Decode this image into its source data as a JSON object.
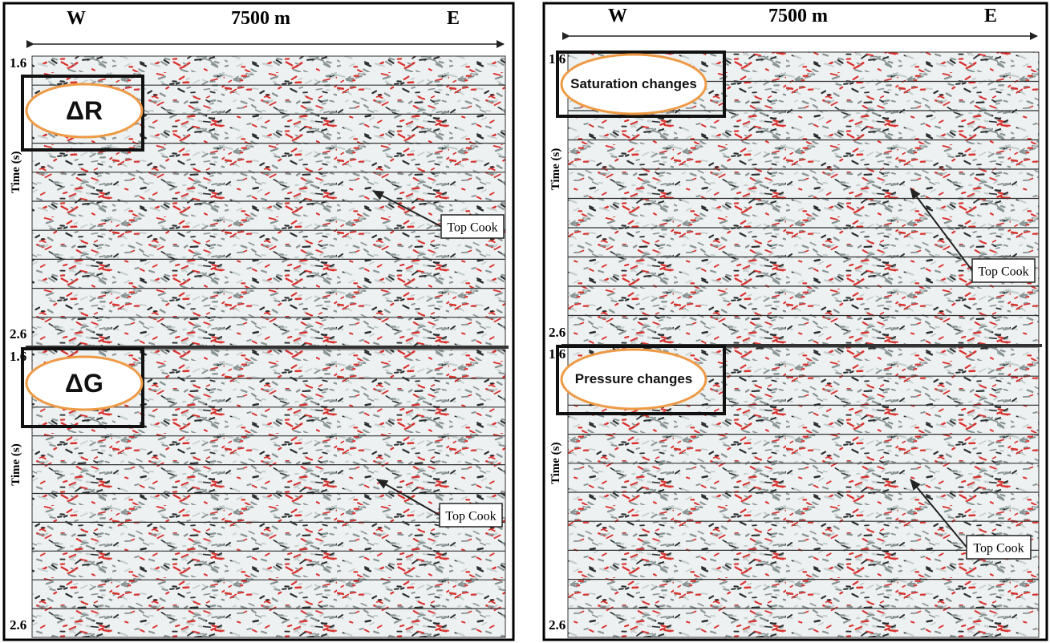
{
  "panels": [
    {
      "header": {
        "west": "W",
        "distance": "7500 m",
        "east": "E"
      },
      "sections": [
        {
          "top_time": "1.6",
          "bottom_time": "2.6",
          "axis_label": "Time (s)",
          "badge": "ΔR",
          "annotation": "Top Cook"
        },
        {
          "top_time": "1.6",
          "bottom_time": "2.6",
          "axis_label": "Time (s)",
          "badge": "ΔG",
          "annotation": "Top Cook"
        }
      ]
    },
    {
      "header": {
        "west": "W",
        "distance": "7500 m",
        "east": "E"
      },
      "sections": [
        {
          "top_time": "1.6",
          "bottom_time": "2.6",
          "axis_label": "Time (s)",
          "badge": "Saturation changes",
          "annotation": "Top Cook"
        },
        {
          "top_time": "1.6",
          "bottom_time": "2.6",
          "axis_label": "Time (s)",
          "badge": "Pressure changes",
          "annotation": "Top Cook"
        }
      ]
    }
  ]
}
